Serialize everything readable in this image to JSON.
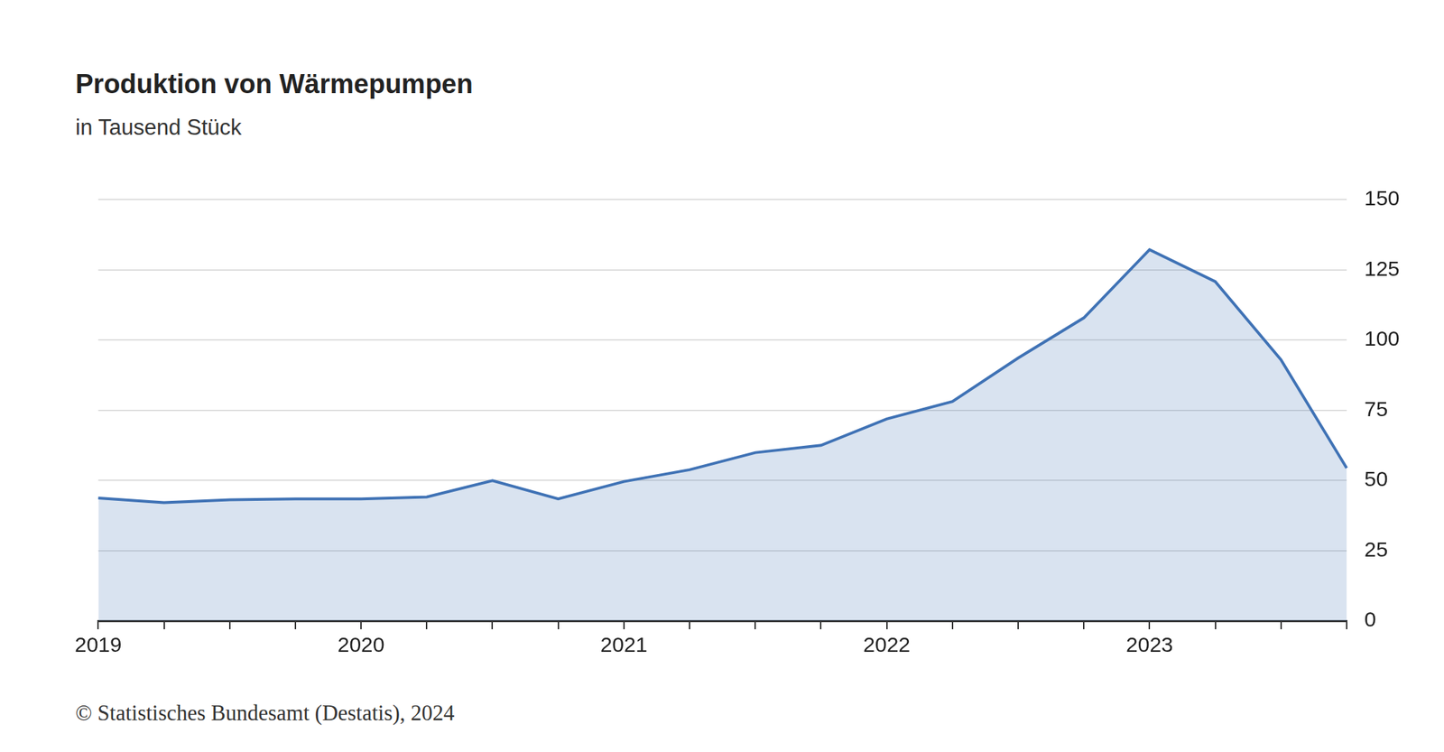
{
  "chart_data": {
    "type": "area",
    "title": "Produktion von Wärmepumpen",
    "subtitle": "in Tausend Stück",
    "source": "© Statistisches Bundesamt (Destatis), 2024",
    "categories": [
      "2019",
      null,
      null,
      null,
      "2020",
      null,
      null,
      null,
      "2021",
      null,
      null,
      null,
      "2022",
      null,
      null,
      null,
      "2023",
      null,
      null,
      null
    ],
    "values": [
      43.7,
      42.1,
      43.1,
      43.4,
      43.4,
      44.1,
      49.9,
      43.4,
      49.6,
      53.8,
      59.9,
      62.5,
      71.9,
      78.1,
      93.6,
      107.9,
      132.2,
      120.8,
      93.0,
      54.4
    ],
    "color": "#3f72b5",
    "ylim": [
      0,
      150
    ],
    "yticks": [
      0,
      25,
      50,
      75,
      100,
      125,
      150
    ],
    "grid": true
  }
}
